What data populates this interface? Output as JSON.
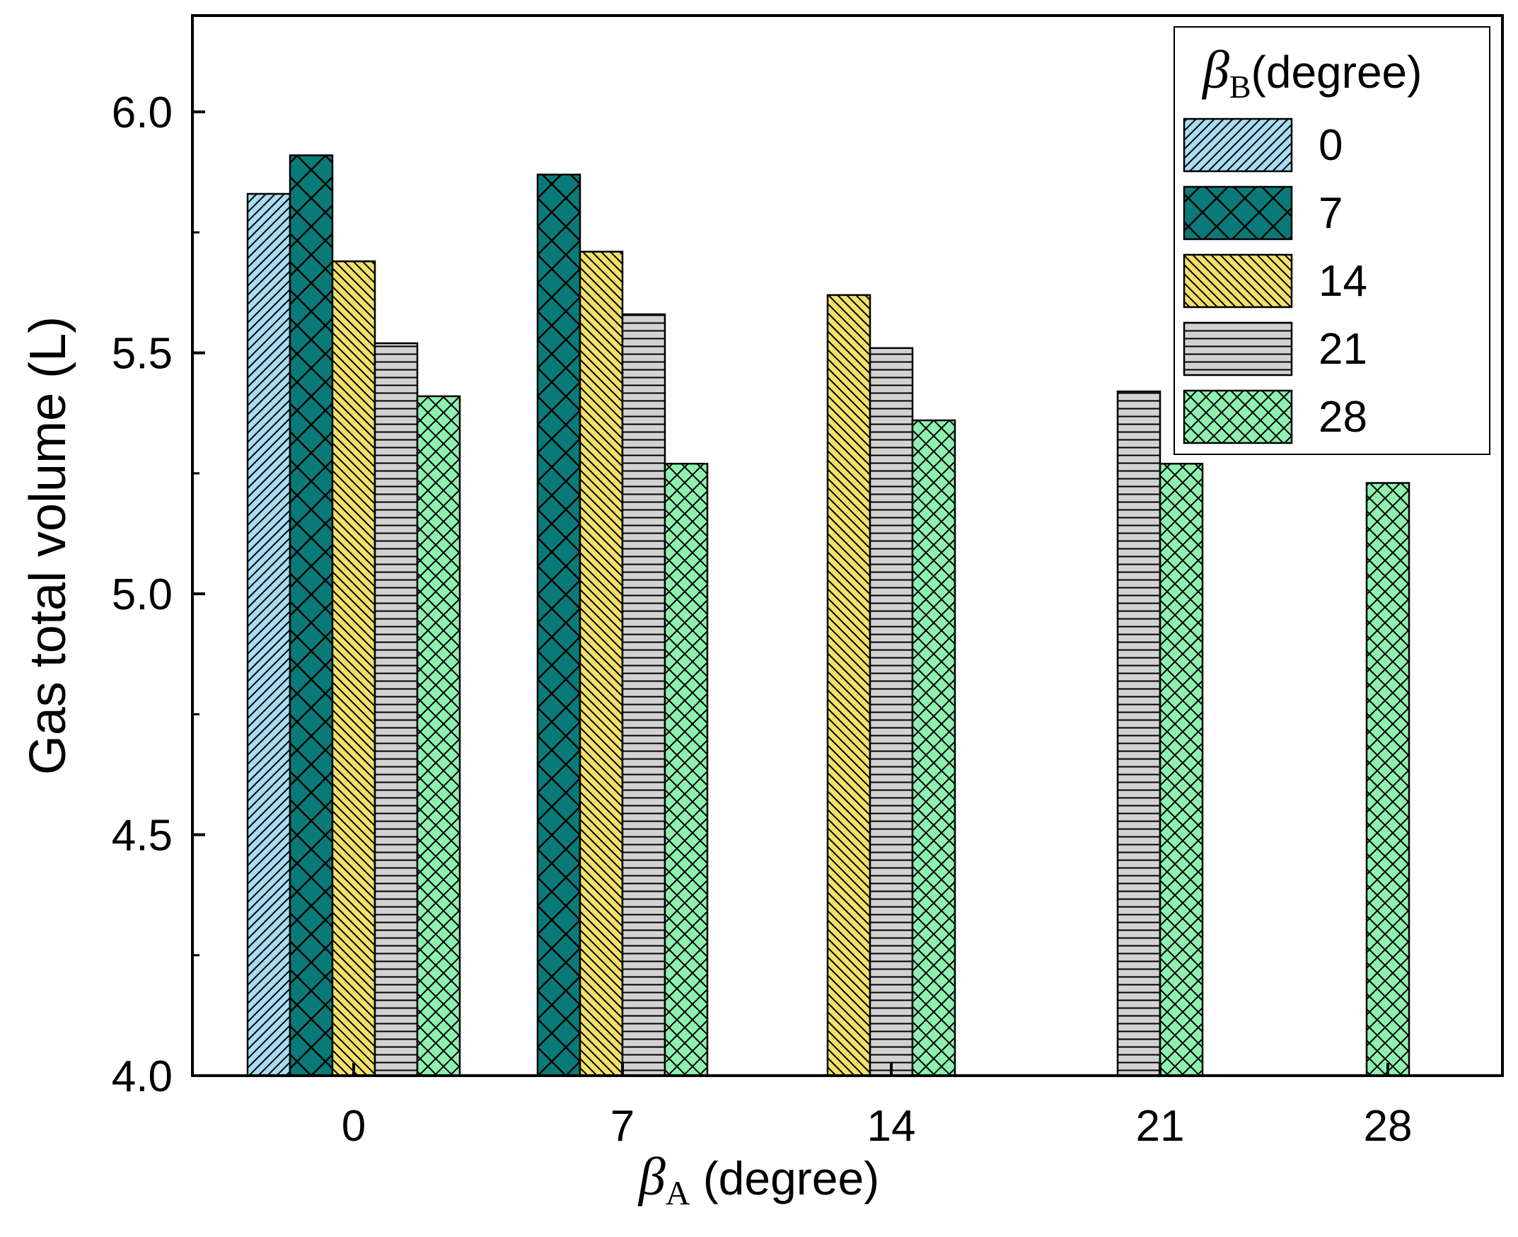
{
  "chart_data": {
    "type": "bar",
    "title": "",
    "xlabel_symbol": "β",
    "xlabel_subscript": "A",
    "xlabel_suffix": " (degree)",
    "ylabel": "Gas total volume (L)",
    "ylim": [
      4.0,
      6.2
    ],
    "yticks": [
      "4.0",
      "4.5",
      "5.0",
      "5.5",
      "6.0"
    ],
    "ytick_values": [
      4.0,
      4.5,
      5.0,
      5.5,
      6.0
    ],
    "categories": [
      "0",
      "7",
      "14",
      "21",
      "28"
    ],
    "legend_title_symbol": "β",
    "legend_title_subscript": "B",
    "legend_title_suffix": "(degree)",
    "legend_position": "top-right",
    "series": [
      {
        "name": "0",
        "color": "#a8dcf2",
        "pattern": "diagonal-up",
        "values": [
          5.83,
          null,
          null,
          null,
          null
        ]
      },
      {
        "name": "7",
        "color": "#0a7a78",
        "pattern": "crosshatch",
        "values": [
          5.91,
          5.87,
          null,
          null,
          null
        ]
      },
      {
        "name": "14",
        "color": "#f2e06a",
        "pattern": "diagonal-down",
        "values": [
          5.69,
          5.71,
          5.62,
          null,
          null
        ]
      },
      {
        "name": "21",
        "color": "#d2d2d2",
        "pattern": "horizontal",
        "values": [
          5.52,
          5.58,
          5.51,
          5.42,
          null
        ]
      },
      {
        "name": "28",
        "color": "#8ef0b0",
        "pattern": "crosshatch-fine",
        "values": [
          5.41,
          5.27,
          5.36,
          5.27,
          5.23
        ]
      }
    ]
  }
}
